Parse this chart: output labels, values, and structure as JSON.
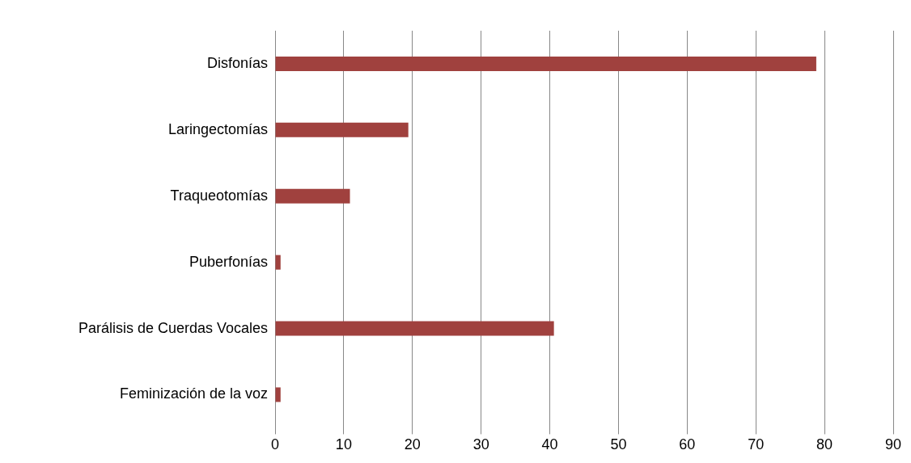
{
  "chart_data": {
    "type": "bar",
    "orientation": "horizontal",
    "categories": [
      "Disfonías",
      "Laringectomías",
      "Traqueotomías",
      "Puberfonías",
      "Parálisis de Cuerdas Vocales",
      "Feminización de la voz"
    ],
    "values": [
      78.8,
      19.4,
      10.9,
      0.8,
      40.6,
      0.8
    ],
    "color": "#a0413e",
    "xlim": [
      0,
      90
    ],
    "xticks": [
      0,
      10,
      20,
      30,
      40,
      50,
      60,
      70,
      80,
      90
    ],
    "grid": "x",
    "legend": false
  }
}
